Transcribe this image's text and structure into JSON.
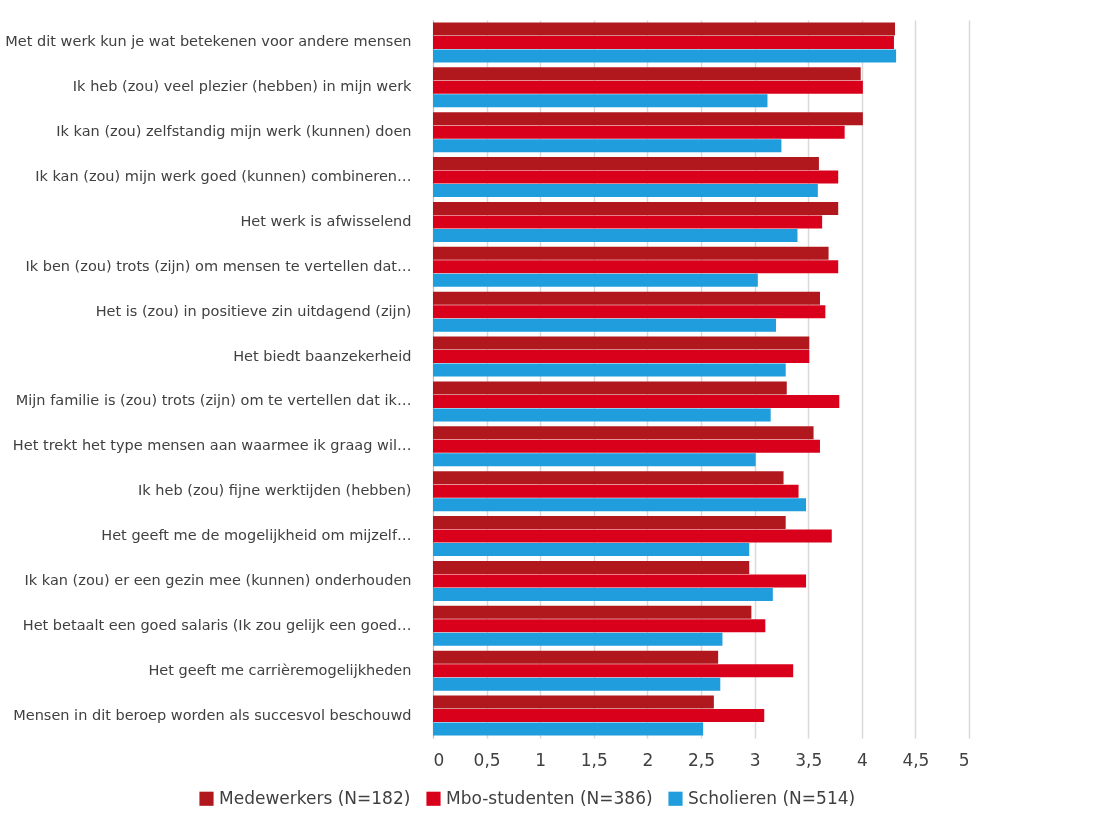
{
  "chart_data": {
    "type": "bar",
    "orientation": "horizontal",
    "categories": [
      "Met dit werk kun je wat betekenen voor andere mensen",
      "Ik heb (zou) veel plezier (hebben) in mijn werk",
      "Ik kan (zou) zelfstandig mijn werk (kunnen) doen",
      "Ik kan (zou) mijn werk goed (kunnen) combineren…",
      "Het werk is afwisselend",
      "Ik ben (zou) trots (zijn) om mensen te vertellen dat…",
      "Het is (zou) in positieve zin uitdagend (zijn)",
      "Het biedt baanzekerheid",
      "Mijn familie is (zou) trots (zijn) om te vertellen dat ik…",
      "Het trekt het type mensen aan waarmee ik graag wil…",
      "Ik heb (zou) fijne werktijden (hebben)",
      "Het geeft me de mogelijkheid om mijzelf…",
      "Ik kan (zou) er een gezin mee (kunnen) onderhouden",
      "Het betaalt een goed salaris (Ik zou gelijk een goed…",
      "Het geeft me carrièremogelijkheden",
      "Mensen in dit beroep worden als succesvol beschouwd"
    ],
    "series": [
      {
        "name": "Medewerkers (N=182)",
        "color": "#b0181e",
        "values": [
          4.31,
          3.99,
          4.01,
          3.6,
          3.78,
          3.69,
          3.61,
          3.51,
          3.3,
          3.55,
          3.27,
          3.29,
          2.95,
          2.97,
          2.66,
          2.62
        ]
      },
      {
        "name": "Mbo-studenten (N=386)",
        "color": "#d9001b",
        "values": [
          4.3,
          4.01,
          3.84,
          3.78,
          3.63,
          3.78,
          3.66,
          3.51,
          3.79,
          3.61,
          3.41,
          3.72,
          3.48,
          3.1,
          3.36,
          3.09
        ]
      },
      {
        "name": "Scholieren (N=514)",
        "color": "#1f9ddc",
        "values": [
          4.32,
          3.12,
          3.25,
          3.59,
          3.4,
          3.03,
          3.2,
          3.29,
          3.15,
          3.01,
          3.48,
          2.95,
          3.17,
          2.7,
          2.68,
          2.52
        ]
      }
    ],
    "xlim": [
      0,
      5
    ],
    "xticks": [
      0,
      {
        "value": 0.5,
        "label": "0,5"
      },
      1,
      {
        "value": 1.5,
        "label": "1,5"
      },
      2,
      {
        "value": 2.5,
        "label": "2,5"
      },
      3,
      {
        "value": 3.5,
        "label": "3,5"
      },
      4,
      {
        "value": 4.5,
        "label": "4,5"
      },
      5
    ],
    "grid": "x",
    "legend": "bottom"
  }
}
